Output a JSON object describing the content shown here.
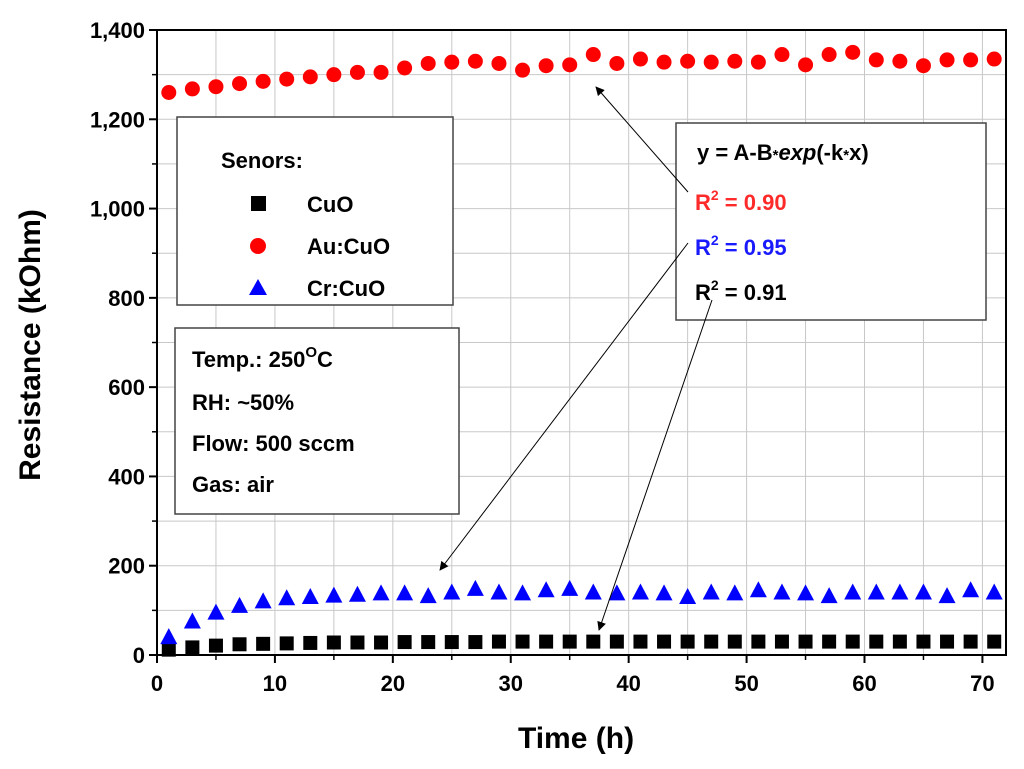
{
  "chart_data": {
    "type": "scatter",
    "title": "",
    "xlabel": "Time (h)",
    "ylabel": "Resistance (kOhm)",
    "xlim": [
      0,
      72
    ],
    "ylim": [
      0,
      1400
    ],
    "x_ticks": [
      0,
      10,
      20,
      30,
      40,
      50,
      60,
      70
    ],
    "x_tick_labels": [
      "0",
      "10",
      "20",
      "30",
      "40",
      "50",
      "60",
      "70"
    ],
    "y_ticks": [
      0,
      200,
      400,
      600,
      800,
      1000,
      1200,
      1400
    ],
    "y_tick_labels": [
      "0",
      "200",
      "400",
      "600",
      "800",
      "1,000",
      "1,200",
      "1,400"
    ],
    "grid": true,
    "x": [
      1,
      3,
      5,
      7,
      9,
      11,
      13,
      15,
      17,
      19,
      21,
      23,
      25,
      27,
      29,
      31,
      33,
      35,
      37,
      39,
      41,
      43,
      45,
      47,
      49,
      51,
      53,
      55,
      57,
      59,
      61,
      63,
      65,
      67,
      69,
      71
    ],
    "series": [
      {
        "name": "CuO",
        "marker": "square",
        "color": "#000000",
        "values": [
          12,
          17,
          21,
          24,
          25,
          26,
          27,
          28,
          28,
          28,
          29,
          29,
          29,
          29,
          30,
          30,
          30,
          30,
          30,
          30,
          30,
          30,
          30,
          30,
          30,
          30,
          30,
          30,
          30,
          30,
          30,
          30,
          30,
          30,
          30,
          30
        ]
      },
      {
        "name": "Au:CuO",
        "marker": "circle",
        "color": "#ff0000",
        "values": [
          1260,
          1268,
          1273,
          1280,
          1285,
          1290,
          1295,
          1300,
          1305,
          1305,
          1315,
          1325,
          1328,
          1330,
          1325,
          1310,
          1320,
          1322,
          1345,
          1325,
          1335,
          1328,
          1330,
          1328,
          1330,
          1328,
          1345,
          1322,
          1345,
          1350,
          1333,
          1330,
          1320,
          1333,
          1333,
          1335
        ]
      },
      {
        "name": "Cr:CuO",
        "marker": "triangle",
        "color": "#0000ff",
        "values": [
          40,
          75,
          95,
          110,
          120,
          127,
          130,
          133,
          135,
          138,
          138,
          132,
          140,
          148,
          140,
          138,
          145,
          148,
          140,
          138,
          140,
          138,
          130,
          140,
          138,
          145,
          140,
          138,
          132,
          140,
          140,
          140,
          140,
          132,
          145,
          140
        ]
      }
    ],
    "legend": {
      "title": "Senors:",
      "entries": [
        "CuO",
        "Au:CuO",
        "Cr:CuO"
      ]
    },
    "conditions": {
      "temp_label": "Temp.: 250",
      "temp_sup": "O",
      "temp_unit": "C",
      "rh": "RH: ~50%",
      "flow": "Flow: 500 sccm",
      "gas": "Gas: air"
    },
    "fit": {
      "equation_pre": "y = A-B",
      "star": "*",
      "exp": "exp",
      "equation_mid": "(-k",
      "equation_post": "x)",
      "r_letter": "R",
      "r_sup": "2",
      "r2_au": " = 0.90",
      "r2_cr": " = 0.95",
      "r2_cuo": " = 0.91",
      "color_au": "#ff2a2a",
      "color_cr": "#1a1aff",
      "color_cuo": "#000000"
    }
  }
}
